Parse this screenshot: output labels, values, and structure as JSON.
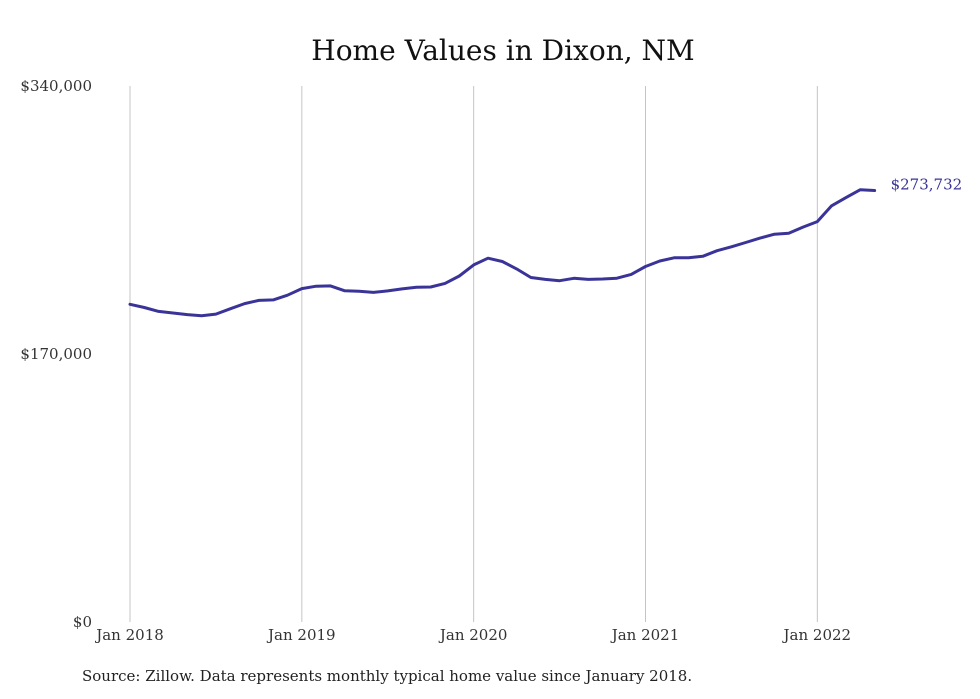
{
  "chart_data": {
    "type": "line",
    "title": "Home Values in Dixon, NM",
    "ylim": [
      0,
      340000
    ],
    "y_ticks": [
      {
        "value": 340000,
        "label": "$340,000"
      },
      {
        "value": 170000,
        "label": "$170,000"
      },
      {
        "value": 0,
        "label": "$0"
      }
    ],
    "x_ticks": [
      {
        "value": 2018.0,
        "label": "Jan 2018"
      },
      {
        "value": 2019.0,
        "label": "Jan 2019"
      },
      {
        "value": 2020.0,
        "label": "Jan 2020"
      },
      {
        "value": 2021.0,
        "label": "Jan 2021"
      },
      {
        "value": 2022.0,
        "label": "Jan 2022"
      }
    ],
    "xlim": [
      2018.0,
      2022.3333
    ],
    "grid": "vertical at x ticks",
    "line_color": "#3a3498",
    "end_label": "$273,732",
    "series": [
      {
        "x": [
          "2018-01",
          "2018-02",
          "2018-03",
          "2018-04",
          "2018-05",
          "2018-06",
          "2018-07",
          "2018-08",
          "2018-09",
          "2018-10",
          "2018-11",
          "2018-12",
          "2019-01",
          "2019-02",
          "2019-03",
          "2019-04",
          "2019-05",
          "2019-06",
          "2019-07",
          "2019-08",
          "2019-09",
          "2019-10",
          "2019-11",
          "2019-12",
          "2020-01",
          "2020-02",
          "2020-03",
          "2020-04",
          "2020-05",
          "2020-06",
          "2020-07",
          "2020-08",
          "2020-09",
          "2020-10",
          "2020-11",
          "2020-12",
          "2021-01",
          "2021-02",
          "2021-03",
          "2021-04",
          "2021-05",
          "2021-06",
          "2021-07",
          "2021-08",
          "2021-09",
          "2021-10",
          "2021-11",
          "2021-12",
          "2022-01",
          "2022-02",
          "2022-03",
          "2022-04",
          "2022-05"
        ],
        "values": [
          201500,
          199500,
          197000,
          196000,
          195000,
          194300,
          195300,
          198700,
          202000,
          204000,
          204300,
          207300,
          211500,
          213000,
          213200,
          210100,
          209800,
          209100,
          210000,
          211300,
          212300,
          212500,
          214800,
          219500,
          226500,
          230800,
          228700,
          224000,
          218500,
          217300,
          216500,
          218000,
          217300,
          217600,
          218100,
          220500,
          225500,
          229000,
          231000,
          231000,
          232000,
          235500,
          238000,
          240700,
          243500,
          246000,
          246600,
          250500,
          254000,
          264000,
          269200,
          274200,
          273732
        ]
      }
    ]
  },
  "footer": {
    "source": "Source: Zillow. Data represents monthly typical home value since January 2018."
  }
}
